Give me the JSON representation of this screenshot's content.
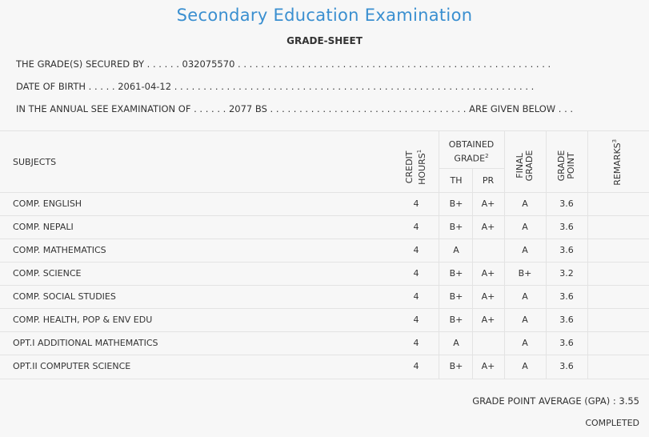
{
  "header": {
    "title": "Secondary Education Examination",
    "subtitle": "GRADE-SHEET"
  },
  "info": {
    "line1": "THE GRADE(S) SECURED BY . . . . . . 032075570 . . . . . . . . . . . . . . . . . . . . . . . . . . . . . . . . . . . . . . . . . . . . . . . . . . . . . .",
    "line2": "DATE OF BIRTH . . . . . 2061-04-12 . . . . . . . . . . . . . . . . . . . . . . . . . . . . . . . . . . . . . . . . . . . . . . . . . . . . . . . . . . . . . .",
    "line3": "IN THE ANNUAL SEE EXAMINATION OF . . . . . . 2077 BS . . . . . . . . . . . . . . . . . . . . . . . . . . . . . . . . . . ARE GIVEN BELOW . . ."
  },
  "table": {
    "headers": {
      "subjects": "SUBJECTS",
      "credit_l1": "CREDIT",
      "credit_l2": "HOURS",
      "credit_sup": "1",
      "obtained_l1": "OBTAINED",
      "obtained_l2": "GRADE",
      "obtained_sup": "2",
      "th": "TH",
      "pr": "PR",
      "final_l1": "FINAL",
      "final_l2": "GRADE",
      "gp_l1": "GRADE",
      "gp_l2": "POINT",
      "remarks": "REMARKS",
      "remarks_sup": "3"
    },
    "rows": [
      {
        "subject": "COMP. ENGLISH",
        "credit": "4",
        "th": "B+",
        "pr": "A+",
        "final": "A",
        "gp": "3.6"
      },
      {
        "subject": "COMP. NEPALI",
        "credit": "4",
        "th": "B+",
        "pr": "A+",
        "final": "A",
        "gp": "3.6"
      },
      {
        "subject": "COMP. MATHEMATICS",
        "credit": "4",
        "th": "A",
        "pr": "",
        "final": "A",
        "gp": "3.6"
      },
      {
        "subject": "COMP. SCIENCE",
        "credit": "4",
        "th": "B+",
        "pr": "A+",
        "final": "B+",
        "gp": "3.2"
      },
      {
        "subject": "COMP. SOCIAL STUDIES",
        "credit": "4",
        "th": "B+",
        "pr": "A+",
        "final": "A",
        "gp": "3.6"
      },
      {
        "subject": "COMP. HEALTH, POP & ENV EDU",
        "credit": "4",
        "th": "B+",
        "pr": "A+",
        "final": "A",
        "gp": "3.6"
      },
      {
        "subject": "OPT.I ADDITIONAL MATHEMATICS",
        "credit": "4",
        "th": "A",
        "pr": "",
        "final": "A",
        "gp": "3.6"
      },
      {
        "subject": "OPT.II COMPUTER SCIENCE",
        "credit": "4",
        "th": "B+",
        "pr": "A+",
        "final": "A",
        "gp": "3.6"
      }
    ]
  },
  "footer": {
    "gpa": "GRADE POINT AVERAGE (GPA) : 3.55",
    "status": "COMPLETED"
  }
}
